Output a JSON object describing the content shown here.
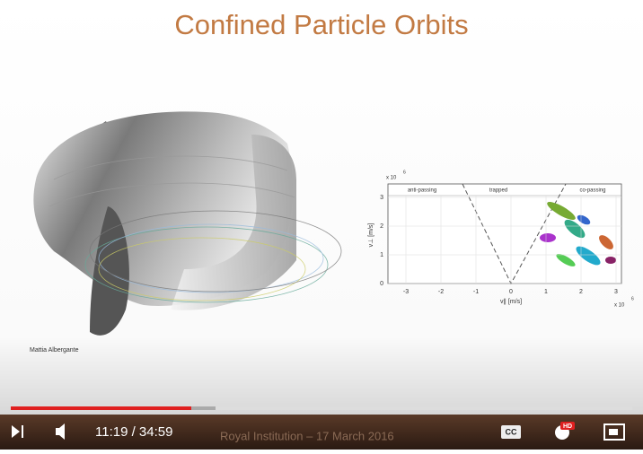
{
  "slide": {
    "title": "Confined Particle Orbits",
    "credit": "Mattia Albergante",
    "plot": {
      "regions": [
        "anti-passing",
        "trapped",
        "co-passing"
      ],
      "y_label": "v⊥ [m/s]",
      "x_label": "v∥ [m/s]",
      "y_multiplier": "x 10",
      "y_multiplier_exp": "6",
      "x_multiplier": "x 10",
      "x_multiplier_exp": "6",
      "xticks": [
        "-3",
        "-2",
        "-1",
        "0",
        "1",
        "2",
        "3"
      ],
      "yticks": [
        "0",
        "1",
        "2",
        "3"
      ]
    }
  },
  "player": {
    "time": "11:19 / 34:59",
    "caption": "Royal Institution – 17 March 2016",
    "cc": "CC",
    "hd": "HD"
  }
}
